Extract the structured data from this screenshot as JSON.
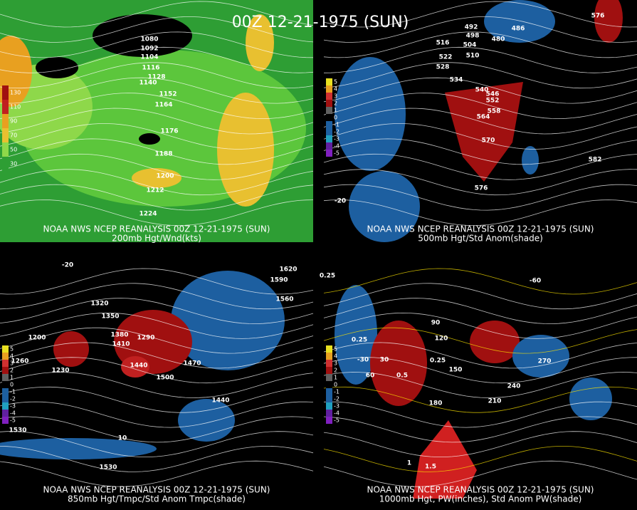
{
  "title": "00Z 12-21-1975 (SUN)",
  "panels": [
    {
      "header": "NOAA NWS NCEP REANALYSIS 00Z 12-21-1975 (SUN)",
      "caption": "200mb Hgt/Wnd(kts)",
      "legend": [
        "130",
        "110",
        "90",
        "70",
        "50",
        "30"
      ],
      "labels": [
        "1080",
        "1092",
        "1104",
        "1116",
        "1128",
        "1140",
        "1152",
        "1164",
        "1176",
        "1188",
        "1200",
        "1212",
        "1224"
      ]
    },
    {
      "header": "NOAA NWS NCEP REANALYSIS 00Z 12-21-1975 (SUN)",
      "caption": "500mb Hgt/Std Anom(shade)",
      "legend": [
        "5",
        "4",
        "3",
        "2",
        "1",
        "0",
        "-1",
        "-2",
        "-3",
        "-4",
        "-5"
      ],
      "labels": [
        "576",
        "486",
        "480",
        "492",
        "498",
        "504",
        "510",
        "516",
        "522",
        "528",
        "534",
        "540",
        "546",
        "552",
        "558",
        "564",
        "570",
        "576",
        "582",
        "-20"
      ]
    },
    {
      "header": "NOAA NWS NCEP REANALYSIS 00Z 12-21-1975 (SUN)",
      "caption": "850mb Hgt/Tmpc/Std Anom Tmpc(shade)",
      "legend": [
        "5",
        "4",
        "3",
        "2",
        "1",
        "0",
        "-1",
        "-2",
        "-3",
        "-4",
        "-5"
      ],
      "labels": [
        "1620",
        "1590",
        "1560",
        "1320",
        "1350",
        "1380",
        "1410",
        "1200",
        "1260",
        "1230",
        "1440",
        "1500",
        "1470",
        "1290",
        "1440",
        "1530",
        "1530",
        "-20",
        "10"
      ]
    },
    {
      "header": "NOAA NWS NCEP REANALYSIS 00Z 12-21-1975 (SUN)",
      "caption": "1000mb Hgt, PW(inches), Std Anom PW(shade)",
      "legend": [
        "5",
        "4",
        "3",
        "2",
        "1",
        "0",
        "-1",
        "-2",
        "-3",
        "-4",
        "-5"
      ],
      "labels": [
        "0.25",
        "0.25",
        "0.25",
        "0.5",
        "1",
        "1.5",
        "30",
        "60",
        "90",
        "120",
        "150",
        "180",
        "210",
        "240",
        "270",
        "-30",
        "-60"
      ]
    }
  ]
}
